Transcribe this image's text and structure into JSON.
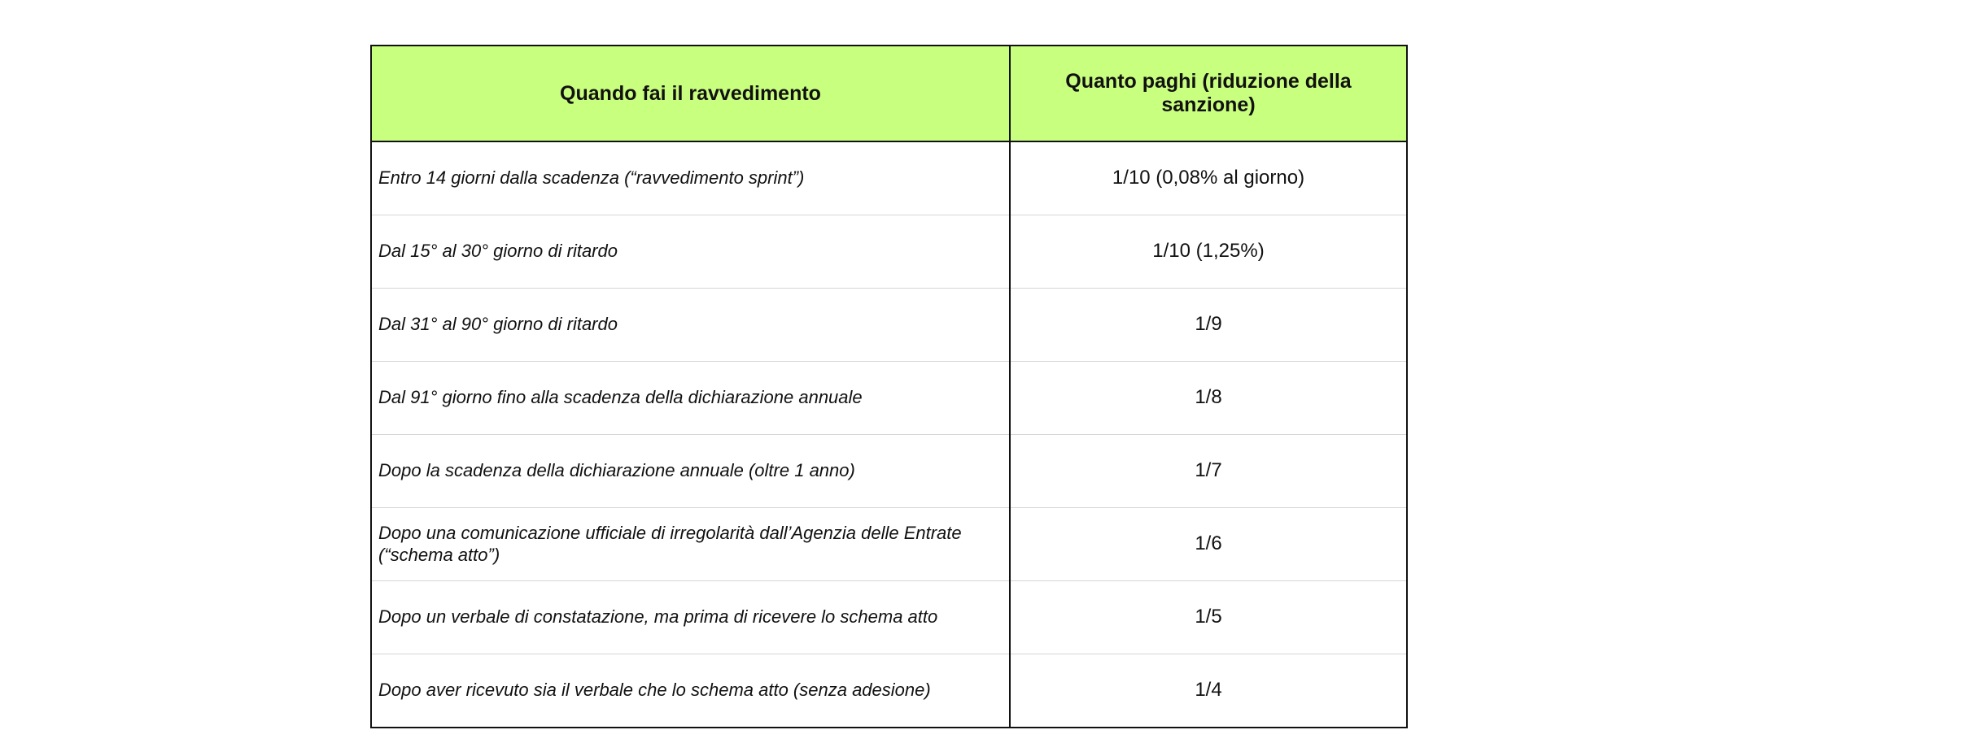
{
  "table": {
    "header": [
      "Quando fai il ravvedimento",
      "Quanto paghi (riduzione della sanzione)"
    ],
    "rows": [
      [
        "Entro 14 giorni dalla scadenza (“ravvedimento sprint”)",
        "1/10 (0,08% al giorno)"
      ],
      [
        "Dal 15° al 30° giorno di ritardo",
        "1/10 (1,25%)"
      ],
      [
        "Dal 31° al 90° giorno di ritardo",
        "1/9"
      ],
      [
        "Dal 91° giorno fino alla scadenza della dichiarazione annuale",
        "1/8"
      ],
      [
        "Dopo la scadenza della dichiarazione annuale (oltre 1 anno)",
        "1/7"
      ],
      [
        "Dopo una comunicazione ufficiale di irregolarità dall’Agenzia delle Entrate (“schema atto”)",
        "1/6"
      ],
      [
        "Dopo un verbale di constatazione, ma prima di ricevere lo schema atto",
        "1/5"
      ],
      [
        "Dopo aver ricevuto sia il verbale che lo schema atto (senza adesione)",
        "1/4"
      ]
    ]
  }
}
